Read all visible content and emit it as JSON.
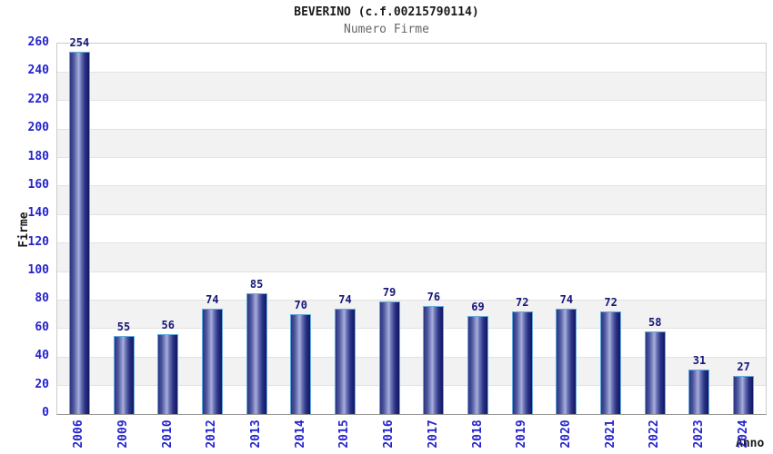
{
  "chart_data": {
    "type": "bar",
    "title": "BEVERINO (c.f.00215790114)",
    "subtitle": "Numero Firme",
    "xlabel": "Anno",
    "ylabel": "Firme",
    "categories": [
      "2006",
      "2009",
      "2010",
      "2012",
      "2013",
      "2014",
      "2015",
      "2016",
      "2017",
      "2018",
      "2019",
      "2020",
      "2021",
      "2022",
      "2023",
      "2024"
    ],
    "values": [
      254,
      55,
      56,
      74,
      85,
      70,
      74,
      79,
      76,
      69,
      72,
      74,
      72,
      58,
      31,
      27
    ],
    "ylim": [
      0,
      260
    ],
    "ytick_step": 20,
    "grid": "horizontal gridlines with alternating gray/white bands",
    "legend": "none",
    "bar_value_labels": true,
    "x_labels_rotation_deg": -90,
    "colors": {
      "bar_edge_dark": "#1a1f6e",
      "bar_highlight": "#a9b0db",
      "bar_border": "#64aadf",
      "axis_tick_label": "#2424cc",
      "bar_value_label": "#16167a",
      "title_text": "#1a1a1a",
      "subtitle_text": "#666666",
      "band_fill": "#f2f2f2",
      "gridline": "#e2e2e2",
      "plot_border": "#cccccc",
      "axis_line": "#999999",
      "background": "#ffffff"
    }
  }
}
